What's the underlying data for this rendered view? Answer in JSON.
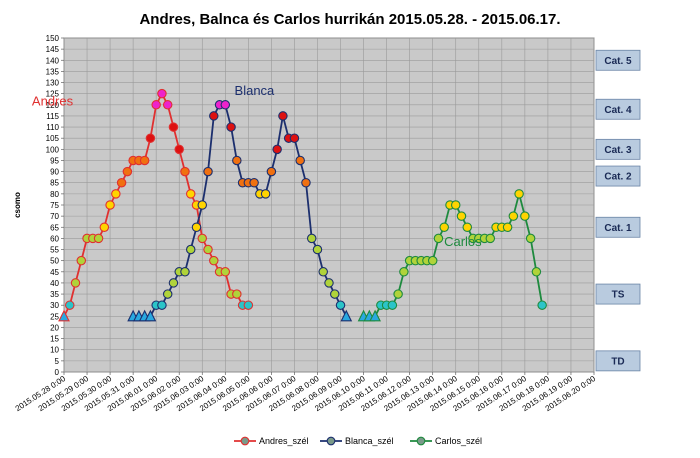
{
  "chart_data": {
    "type": "line",
    "title": "Andres, Balnca és Carlos hurrikán 2015.05.28. - 2015.06.17.",
    "ylabel": "csomo",
    "xlabel": "",
    "ylim": [
      0,
      150
    ],
    "ytick_step": 5,
    "x_ticks": [
      "2015.05.28 0:00",
      "2015.05.29 0:00",
      "2015.05.30 0:00",
      "2015.05.31 0:00",
      "2015.06.01 0:00",
      "2015.06.02 0:00",
      "2015.06.03 0:00",
      "2015.06.04 0:00",
      "2015.06.05 0:00",
      "2015.06.06 0:00",
      "2015.06.07 0:00",
      "2015.06.08 0:00",
      "2015.06.09 0:00",
      "2015.06.10 0:00",
      "2015.06.11 0:00",
      "2015.06.12 0:00",
      "2015.06.13 0:00",
      "2015.06.14 0:00",
      "2015.06.15 0:00",
      "2015.06.16 0:00",
      "2015.06.17 0:00",
      "2015.06.18 0:00",
      "2015.06.19 0:00",
      "2015.06.20 0:00"
    ],
    "grid": true,
    "legend_position": "bottom",
    "categories_band": [
      {
        "label": "Cat. 5",
        "value": 140
      },
      {
        "label": "Cat. 4",
        "value": 118
      },
      {
        "label": "Cat. 3",
        "value": 100
      },
      {
        "label": "Cat. 2",
        "value": 88
      },
      {
        "label": "Cat. 1",
        "value": 65
      },
      {
        "label": "TS",
        "value": 35
      },
      {
        "label": "TD",
        "value": 5
      }
    ],
    "series": [
      {
        "name": "Andres_szél",
        "label": "Andres",
        "line_color": "#e03030",
        "label_color": "#e03030",
        "points": [
          [
            "2015.05.28 0:00",
            25
          ],
          [
            "2015.05.28 6:00",
            30
          ],
          [
            "2015.05.28 12:00",
            40
          ],
          [
            "2015.05.28 18:00",
            50
          ],
          [
            "2015.05.29 0:00",
            60
          ],
          [
            "2015.05.29 6:00",
            60
          ],
          [
            "2015.05.29 12:00",
            60
          ],
          [
            "2015.05.29 18:00",
            65
          ],
          [
            "2015.05.30 0:00",
            75
          ],
          [
            "2015.05.30 6:00",
            80
          ],
          [
            "2015.05.30 12:00",
            85
          ],
          [
            "2015.05.30 18:00",
            90
          ],
          [
            "2015.05.31 0:00",
            95
          ],
          [
            "2015.05.31 6:00",
            95
          ],
          [
            "2015.05.31 12:00",
            95
          ],
          [
            "2015.05.31 18:00",
            105
          ],
          [
            "2015.06.01 0:00",
            120
          ],
          [
            "2015.06.01 6:00",
            125
          ],
          [
            "2015.06.01 12:00",
            120
          ],
          [
            "2015.06.01 18:00",
            110
          ],
          [
            "2015.06.02 0:00",
            100
          ],
          [
            "2015.06.02 6:00",
            90
          ],
          [
            "2015.06.02 12:00",
            80
          ],
          [
            "2015.06.02 18:00",
            75
          ],
          [
            "2015.06.03 0:00",
            60
          ],
          [
            "2015.06.03 6:00",
            55
          ],
          [
            "2015.06.03 12:00",
            50
          ],
          [
            "2015.06.03 18:00",
            45
          ],
          [
            "2015.06.04 0:00",
            45
          ],
          [
            "2015.06.04 6:00",
            35
          ],
          [
            "2015.06.04 12:00",
            35
          ],
          [
            "2015.06.04 18:00",
            30
          ],
          [
            "2015.06.05 0:00",
            30
          ]
        ]
      },
      {
        "name": "Blanca_szél",
        "label": "Blanca",
        "line_color": "#1c2f6e",
        "label_color": "#1c2f6e",
        "points": [
          [
            "2015.05.31 0:00",
            25
          ],
          [
            "2015.05.31 6:00",
            25
          ],
          [
            "2015.05.31 12:00",
            25
          ],
          [
            "2015.05.31 18:00",
            25
          ],
          [
            "2015.06.01 0:00",
            30
          ],
          [
            "2015.06.01 6:00",
            30
          ],
          [
            "2015.06.01 12:00",
            35
          ],
          [
            "2015.06.01 18:00",
            40
          ],
          [
            "2015.06.02 0:00",
            45
          ],
          [
            "2015.06.02 6:00",
            45
          ],
          [
            "2015.06.02 12:00",
            55
          ],
          [
            "2015.06.02 18:00",
            65
          ],
          [
            "2015.06.03 0:00",
            75
          ],
          [
            "2015.06.03 6:00",
            90
          ],
          [
            "2015.06.03 12:00",
            115
          ],
          [
            "2015.06.03 18:00",
            120
          ],
          [
            "2015.06.04 0:00",
            120
          ],
          [
            "2015.06.04 6:00",
            110
          ],
          [
            "2015.06.04 12:00",
            95
          ],
          [
            "2015.06.04 18:00",
            85
          ],
          [
            "2015.06.05 0:00",
            85
          ],
          [
            "2015.06.05 6:00",
            85
          ],
          [
            "2015.06.05 12:00",
            80
          ],
          [
            "2015.06.05 18:00",
            80
          ],
          [
            "2015.06.06 0:00",
            90
          ],
          [
            "2015.06.06 6:00",
            100
          ],
          [
            "2015.06.06 12:00",
            115
          ],
          [
            "2015.06.06 18:00",
            105
          ],
          [
            "2015.06.07 0:00",
            105
          ],
          [
            "2015.06.07 6:00",
            95
          ],
          [
            "2015.06.07 12:00",
            85
          ],
          [
            "2015.06.07 18:00",
            60
          ],
          [
            "2015.06.08 0:00",
            55
          ],
          [
            "2015.06.08 6:00",
            45
          ],
          [
            "2015.06.08 12:00",
            40
          ],
          [
            "2015.06.08 18:00",
            35
          ],
          [
            "2015.06.09 0:00",
            30
          ],
          [
            "2015.06.09 6:00",
            25
          ]
        ]
      },
      {
        "name": "Carlos_szél",
        "label": "Carlos",
        "line_color": "#1e8a3e",
        "label_color": "#1e8a3e",
        "points": [
          [
            "2015.06.10 0:00",
            25
          ],
          [
            "2015.06.10 6:00",
            25
          ],
          [
            "2015.06.10 12:00",
            25
          ],
          [
            "2015.06.10 18:00",
            30
          ],
          [
            "2015.06.11 0:00",
            30
          ],
          [
            "2015.06.11 6:00",
            30
          ],
          [
            "2015.06.11 12:00",
            35
          ],
          [
            "2015.06.11 18:00",
            45
          ],
          [
            "2015.06.12 0:00",
            50
          ],
          [
            "2015.06.12 6:00",
            50
          ],
          [
            "2015.06.12 12:00",
            50
          ],
          [
            "2015.06.12 18:00",
            50
          ],
          [
            "2015.06.13 0:00",
            50
          ],
          [
            "2015.06.13 6:00",
            60
          ],
          [
            "2015.06.13 12:00",
            65
          ],
          [
            "2015.06.13 18:00",
            75
          ],
          [
            "2015.06.14 0:00",
            75
          ],
          [
            "2015.06.14 6:00",
            70
          ],
          [
            "2015.06.14 12:00",
            65
          ],
          [
            "2015.06.14 18:00",
            60
          ],
          [
            "2015.06.15 0:00",
            60
          ],
          [
            "2015.06.15 6:00",
            60
          ],
          [
            "2015.06.15 12:00",
            60
          ],
          [
            "2015.06.15 18:00",
            65
          ],
          [
            "2015.06.16 0:00",
            65
          ],
          [
            "2015.06.16 6:00",
            65
          ],
          [
            "2015.06.16 12:00",
            70
          ],
          [
            "2015.06.16 18:00",
            80
          ],
          [
            "2015.06.17 0:00",
            70
          ],
          [
            "2015.06.17 6:00",
            60
          ],
          [
            "2015.06.17 12:00",
            45
          ],
          [
            "2015.06.17 18:00",
            30
          ]
        ]
      }
    ]
  }
}
